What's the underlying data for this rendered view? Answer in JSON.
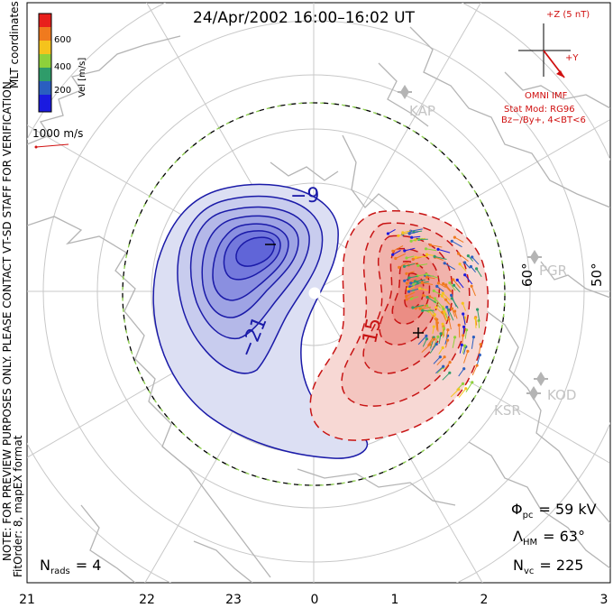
{
  "title": "24/Apr/2002 16:00–16:02 UT",
  "coord_label": "MLT coordinates",
  "colorbar": {
    "unit_label": "Vel [m/s]",
    "ticks": [
      "600",
      "400",
      "200"
    ],
    "colors": [
      "#e8201c",
      "#f07a1e",
      "#f5c31c",
      "#8ed13b",
      "#2f9c6a",
      "#2a5ec0",
      "#1a1ae0"
    ]
  },
  "reference_vector_label": "1000 m/s",
  "vertical_note": "NOTE: FOR PREVIEW PURPOSES ONLY. PLEASE CONTACT VT-SD STAFF FOR VERIFICATION.",
  "fitorder_note": "FitOrder: 8, mapEX format",
  "imf": {
    "z_label": "+Z (5 nT)",
    "y_label": "+Y",
    "source": "OMNI IMF",
    "model_line1": "Stat Mod: RG96",
    "model_line2": "Bz−/By+, 4<BT<6",
    "color": "#d01010"
  },
  "stations": [
    {
      "code": "KAP"
    },
    {
      "code": "PGR"
    },
    {
      "code": "KOD"
    },
    {
      "code": "KSR"
    }
  ],
  "lat_labels": [
    "60°",
    "50°"
  ],
  "contour_labels": [
    "−9",
    "−21",
    "15"
  ],
  "stats": {
    "phi_symbol": "Φ",
    "phi_sub": "pc",
    "phi_value": "= 59 kV",
    "lambda_symbol": "Λ",
    "lambda_sub": "HM",
    "lambda_value": "= 63°",
    "nvc_symbol": "N",
    "nvc_sub": "vc",
    "nvc_value": "= 225",
    "nrads_symbol": "N",
    "nrads_sub": "rads",
    "nrads_value": "= 4"
  },
  "mlt_axis": [
    "21",
    "22",
    "23",
    "0",
    "1",
    "2",
    "3"
  ],
  "colors": {
    "negative_contour": "#1a1aa8",
    "positive_contour": "#c81414",
    "boundary_dash": "#8fd14f",
    "coastline": "#b4b4b4",
    "grid": "#c8c8c8"
  }
}
